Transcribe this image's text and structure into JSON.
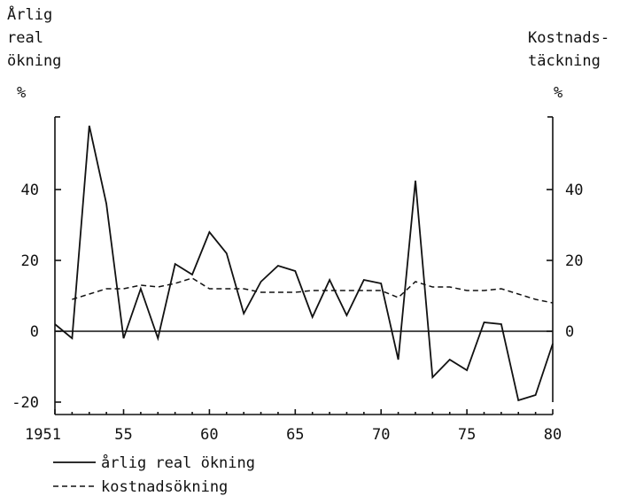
{
  "chart_data": {
    "type": "line",
    "left_axis": {
      "label_lines": [
        "Årlig",
        "real",
        "ökning"
      ],
      "unit": "%",
      "ticks": [
        40,
        20,
        0,
        -20
      ],
      "tick_labels": [
        "40",
        "20",
        "0",
        "-20"
      ],
      "range": [
        -24,
        58
      ]
    },
    "right_axis": {
      "label_lines": [
        "Kostnads-",
        "täckning"
      ],
      "unit": "%",
      "ticks": [
        40,
        20,
        0
      ],
      "tick_labels": [
        "40",
        "20",
        "0"
      ],
      "range": [
        -24,
        58
      ]
    },
    "x_axis": {
      "range": [
        1951,
        1980
      ],
      "ticks": [
        1951,
        1955,
        1960,
        1965,
        1970,
        1975,
        1980
      ],
      "tick_labels": [
        "1951",
        "55",
        "60",
        "65",
        "70",
        "75",
        "80"
      ]
    },
    "series": [
      {
        "name": "årlig real ökning",
        "style": "solid",
        "x": [
          1951,
          1952,
          1953,
          1954,
          1955,
          1956,
          1957,
          1958,
          1959,
          1960,
          1961,
          1962,
          1963,
          1964,
          1965,
          1966,
          1967,
          1968,
          1969,
          1970,
          1971,
          1972,
          1973,
          1974,
          1975,
          1976,
          1977,
          1978,
          1979,
          1980
        ],
        "y": [
          2,
          -2,
          58,
          36,
          -2,
          12,
          -2,
          19,
          16,
          28,
          22,
          5,
          14,
          18.5,
          17,
          4,
          14.5,
          4.5,
          14.5,
          13.5,
          -8,
          42.5,
          -13,
          -8,
          -11,
          2.5,
          2,
          -19.5,
          -18,
          -3.5
        ]
      },
      {
        "name": "kostnadsökning",
        "style": "dashed",
        "x": [
          1952,
          1953,
          1954,
          1955,
          1956,
          1957,
          1958,
          1959,
          1960,
          1961,
          1962,
          1963,
          1964,
          1965,
          1966,
          1967,
          1968,
          1969,
          1970,
          1971,
          1972,
          1973,
          1974,
          1975,
          1976,
          1977,
          1978,
          1979,
          1980
        ],
        "y": [
          9,
          10.5,
          12,
          12,
          13,
          12.5,
          13.5,
          15,
          12,
          12,
          12,
          11,
          11,
          11,
          11.5,
          11.5,
          11.5,
          11.5,
          11.5,
          9.5,
          14,
          12.5,
          12.5,
          11.5,
          11.5,
          12,
          10.5,
          9,
          8
        ]
      }
    ],
    "legend": {
      "position": "bottom-left",
      "entries": [
        {
          "name": "årlig real ökning",
          "style": "solid"
        },
        {
          "name": "kostnadsökning",
          "style": "dashed"
        }
      ]
    },
    "grid": false
  }
}
